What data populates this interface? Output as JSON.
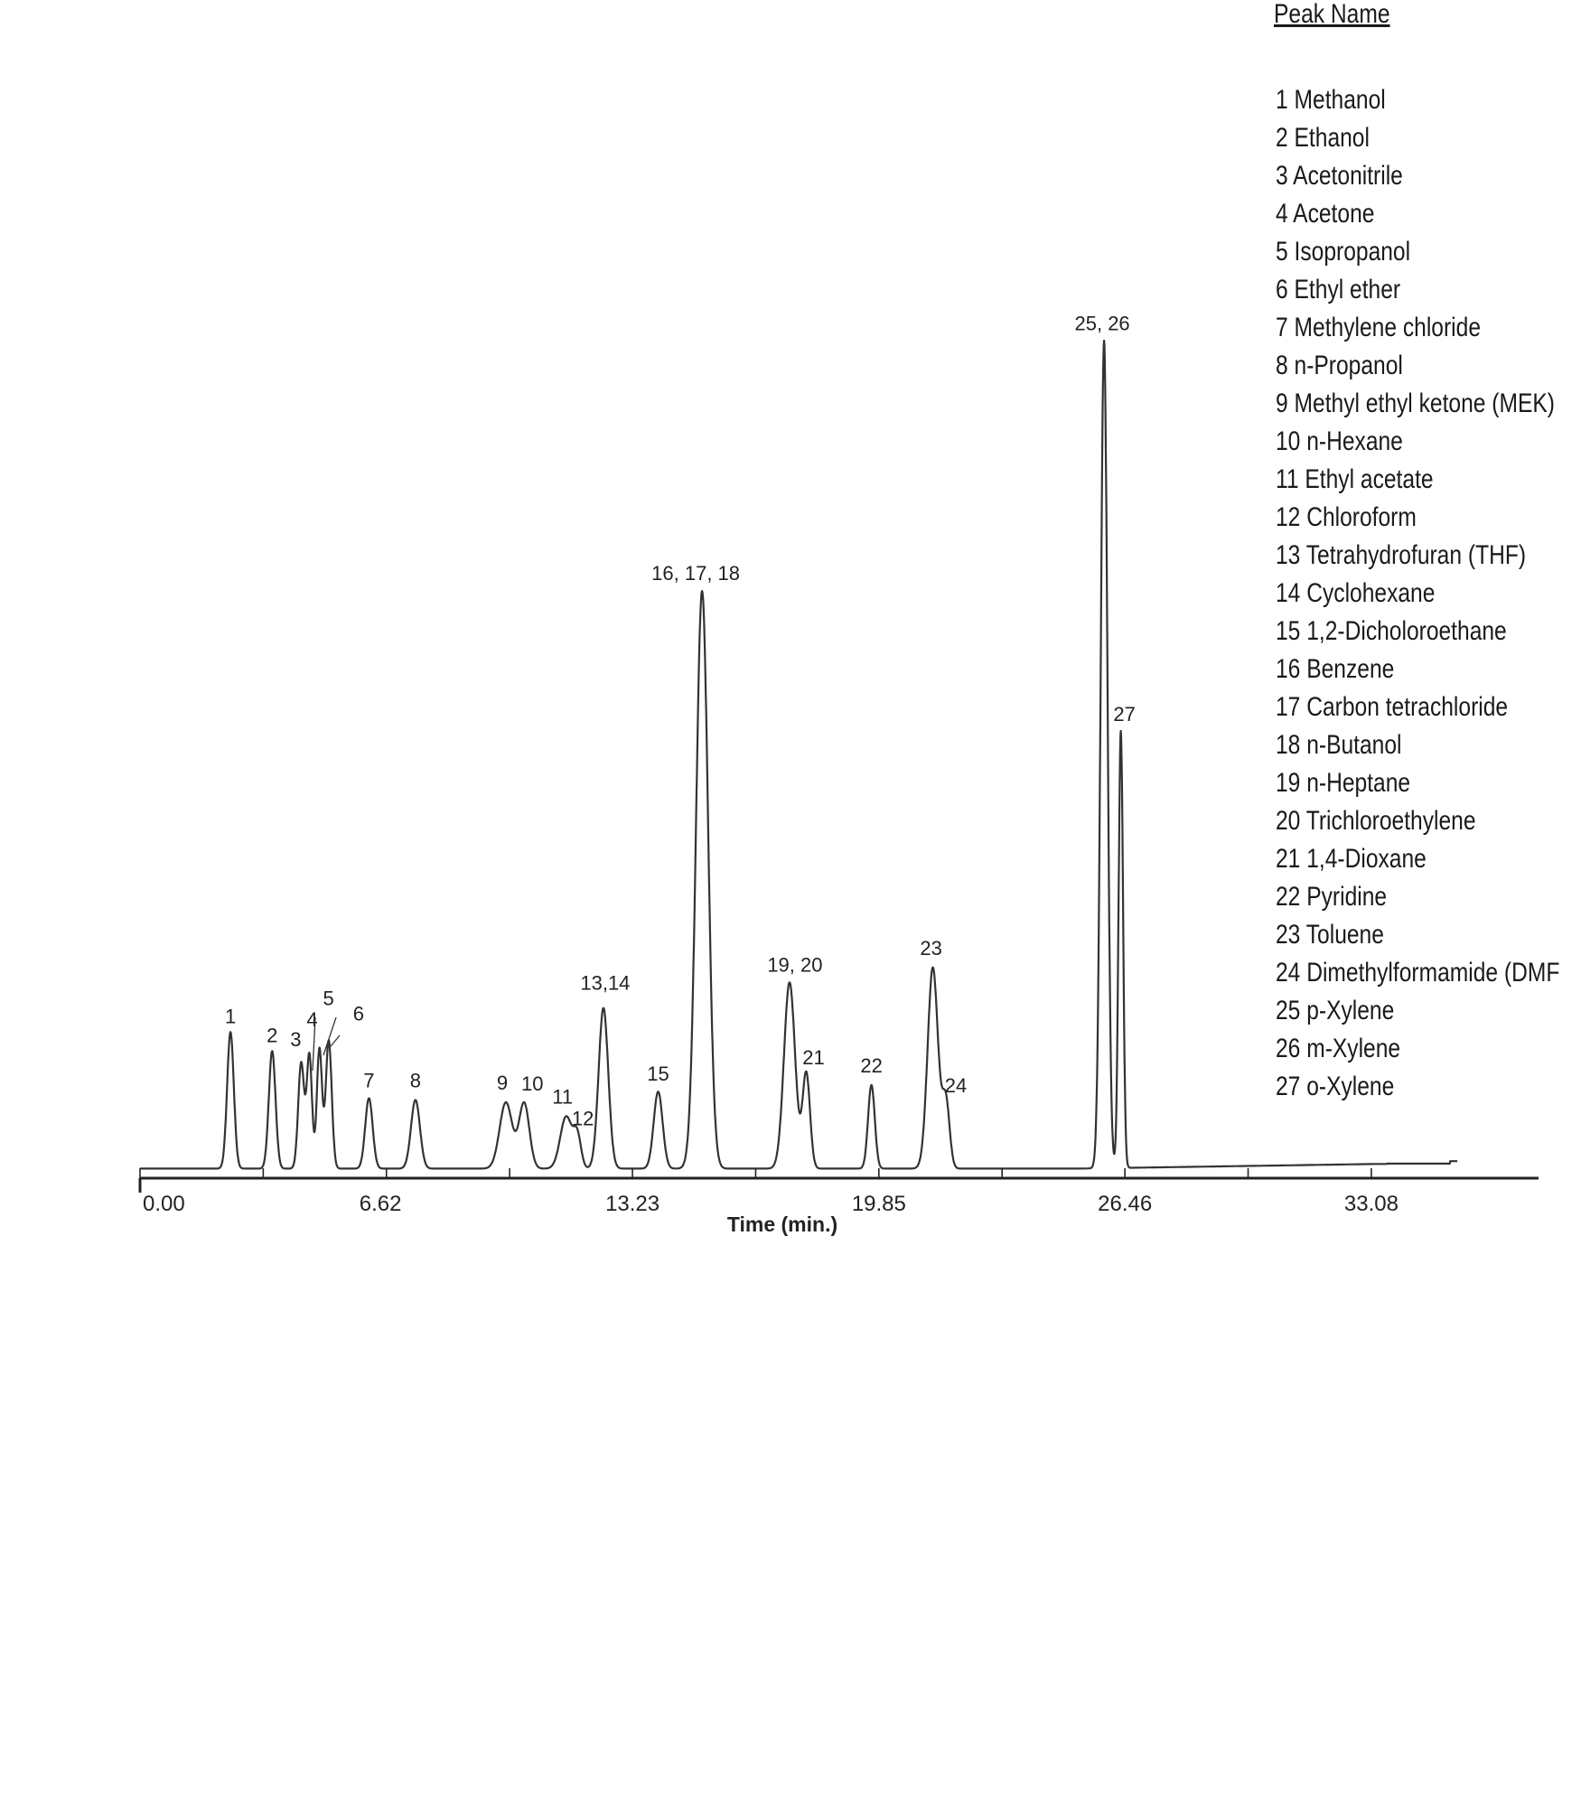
{
  "chart_data": {
    "type": "line",
    "xlabel": "Time (min.)",
    "ylabel": "",
    "x_ticks": [
      "0.00",
      "6.62",
      "13.23",
      "19.85",
      "26.46",
      "33.08"
    ],
    "xlim": [
      0,
      37
    ],
    "grid": false,
    "legend_placement": "top-right",
    "legend_title": "Peak Name",
    "legend_entries": [
      "1 Methanol",
      "2 Ethanol",
      "3 Acetonitrile",
      "4 Acetone",
      "5 Isopropanol",
      "6 Ethyl ether",
      "7 Methylene chloride",
      "8 n-Propanol",
      "9 Methyl ethyl ketone (MEK)",
      "10 n-Hexane",
      "11 Ethyl acetate",
      "12 Chloroform",
      "13 Tetrahydrofuran (THF)",
      "14 Cyclohexane",
      "15 1,2-Dicholoroethane",
      "16 Benzene",
      "17 Carbon tetrachloride",
      "18 n-Butanol",
      "19 n-Heptane",
      "20 Trichloroethylene",
      "21 1,4-Dioxane",
      "22 Pyridine",
      "23 Toluene",
      "24 Dimethylformamide (DMF",
      "25 p-Xylene",
      "26 m-Xylene",
      "27 o-Xylene"
    ],
    "peaks": [
      {
        "label": "1",
        "x": 2.43,
        "y": 16.5
      },
      {
        "label": "2",
        "x": 3.55,
        "y": 14.2
      },
      {
        "label": "3",
        "x": 4.33,
        "y": 12.8
      },
      {
        "label": "4",
        "x": 4.55,
        "y": 13.7
      },
      {
        "label": "5",
        "x": 4.82,
        "y": 14.5
      },
      {
        "label": "6",
        "x": 5.07,
        "y": 15.5
      },
      {
        "label": "7",
        "x": 6.15,
        "y": 8.5
      },
      {
        "label": "8",
        "x": 7.4,
        "y": 8.3
      },
      {
        "label": "9",
        "x": 9.83,
        "y": 8.0
      },
      {
        "label": "10",
        "x": 10.32,
        "y": 7.9
      },
      {
        "label": "11",
        "x": 11.45,
        "y": 6.3
      },
      {
        "label": "12",
        "x": 11.75,
        "y": 3.7
      },
      {
        "label": "13,14",
        "x": 12.45,
        "y": 19.4
      },
      {
        "label": "15",
        "x": 13.92,
        "y": 9.3
      },
      {
        "label": "16, 17, 18",
        "x": 15.1,
        "y": 69.8
      },
      {
        "label": "19, 20",
        "x": 17.45,
        "y": 22.5
      },
      {
        "label": "21",
        "x": 17.9,
        "y": 11.5
      },
      {
        "label": "22",
        "x": 19.65,
        "y": 10.1
      },
      {
        "label": "23",
        "x": 21.3,
        "y": 24.3
      },
      {
        "label": "24",
        "x": 21.65,
        "y": 8.1
      },
      {
        "label": "25, 26",
        "x": 25.9,
        "y": 100.0
      },
      {
        "label": "27",
        "x": 26.35,
        "y": 52.8
      }
    ]
  }
}
